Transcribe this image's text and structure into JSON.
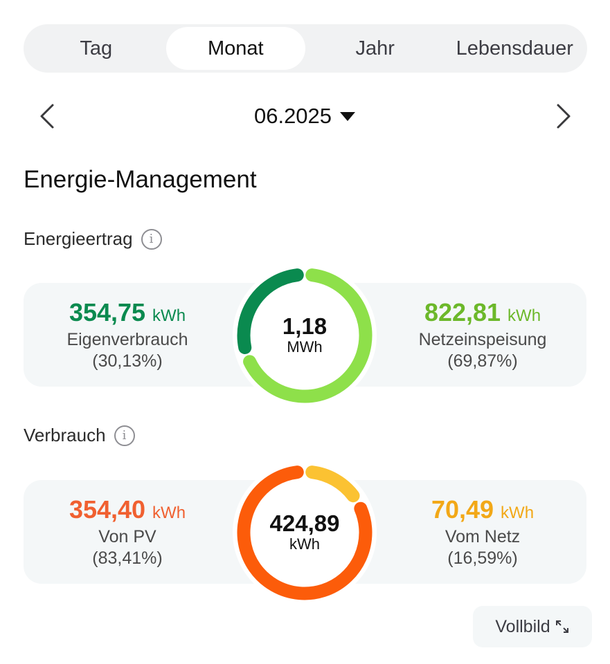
{
  "tabs": [
    {
      "label": "Tag",
      "active": false
    },
    {
      "label": "Monat",
      "active": true
    },
    {
      "label": "Jahr",
      "active": false
    },
    {
      "label": "Lebensdauer",
      "active": false
    }
  ],
  "date": {
    "label": "06.2025"
  },
  "section_title": "Energie-Management",
  "yield": {
    "title": "Energieertrag",
    "left": {
      "value": "354,75",
      "unit": "kWh",
      "label": "Eigenverbrauch",
      "pct": "(30,13%)",
      "fraction": 0.3013,
      "color": "#0a8a4f"
    },
    "right": {
      "value": "822,81",
      "unit": "kWh",
      "label": "Netzeinspeisung",
      "pct": "(69,87%)",
      "fraction": 0.6987,
      "color": "#6cb82a"
    },
    "total": {
      "value": "1,18",
      "unit": "MWh"
    },
    "ring_colors": {
      "first": "#0a8a4f",
      "second": "#8ee04a"
    }
  },
  "consumption": {
    "title": "Verbrauch",
    "left": {
      "value": "354,40",
      "unit": "kWh",
      "label": "Von PV",
      "pct": "(83,41%)",
      "fraction": 0.8341,
      "color": "#f06030"
    },
    "right": {
      "value": "70,49",
      "unit": "kWh",
      "label": "Vom Netz",
      "pct": "(16,59%)",
      "fraction": 0.1659,
      "color": "#f2a817"
    },
    "total": {
      "value": "424,89",
      "unit": "kWh"
    },
    "ring_colors": {
      "first": "#fc5c0a",
      "second": "#fbc232"
    }
  },
  "fullscreen": {
    "label": "Vollbild"
  }
}
